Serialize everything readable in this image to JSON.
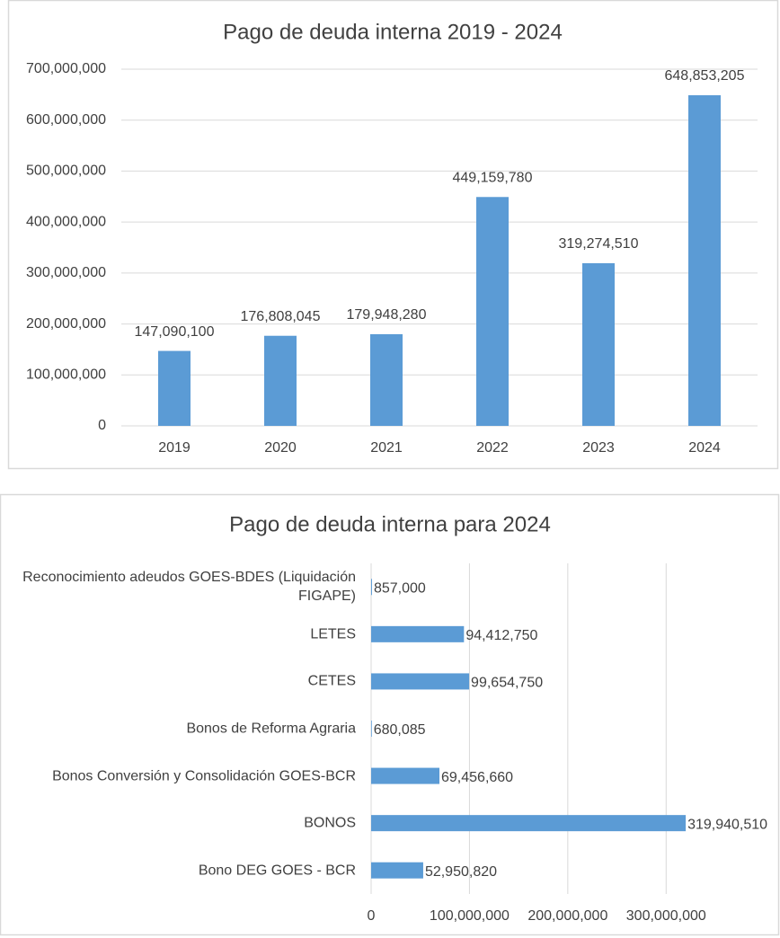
{
  "chart_data": [
    {
      "type": "bar",
      "orientation": "vertical",
      "title": "Pago de deuda interna 2019 - 2024",
      "categories": [
        "2019",
        "2020",
        "2021",
        "2022",
        "2023",
        "2024"
      ],
      "values": [
        147090100,
        176808045,
        179948280,
        449159780,
        319274510,
        648853205
      ],
      "value_labels": [
        "147,090,100",
        "176,808,045",
        "179,948,280",
        "449,159,780",
        "319,274,510",
        "648,853,205"
      ],
      "color": "#5b9bd5",
      "ylim": [
        0,
        700000000
      ],
      "yticks": [
        0,
        {
          "value": 100000000,
          "label": "100,000,000"
        },
        {
          "value": 200000000,
          "label": "200,000,000"
        },
        {
          "value": 300000000,
          "label": "300,000,000"
        },
        {
          "value": 400000000,
          "label": "400,000,000"
        },
        {
          "value": 500000000,
          "label": "500,000,000"
        },
        {
          "value": 600000000,
          "label": "600,000,000"
        },
        {
          "value": 700000000,
          "label": "700,000,000"
        }
      ],
      "grid": true
    },
    {
      "type": "bar",
      "orientation": "horizontal",
      "title": "Pago de deuda interna para 2024",
      "categories": [
        "Reconocimiento adeudos GOES-BDES (Liquidación FIGAPE)",
        "LETES",
        "CETES",
        "Bonos de Reforma Agraria",
        "Bonos Conversión y Consolidación GOES-BCR",
        "BONOS",
        "Bono DEG GOES - BCR"
      ],
      "values": [
        857000,
        94412750,
        99654750,
        680085,
        69456660,
        319940510,
        52950820
      ],
      "value_labels": [
        "857,000",
        "94,412,750",
        "99,654,750",
        "680,085",
        "69,456,660",
        "319,940,510",
        "52,950,820"
      ],
      "color": "#5b9bd5",
      "xlim": [
        0,
        350000000
      ],
      "xticks": [
        0,
        {
          "value": 100000000,
          "label": "100,000,000"
        },
        {
          "value": 200000000,
          "label": "200,000,000"
        },
        {
          "value": 300000000,
          "label": "300,000,000"
        }
      ],
      "grid": true
    }
  ]
}
